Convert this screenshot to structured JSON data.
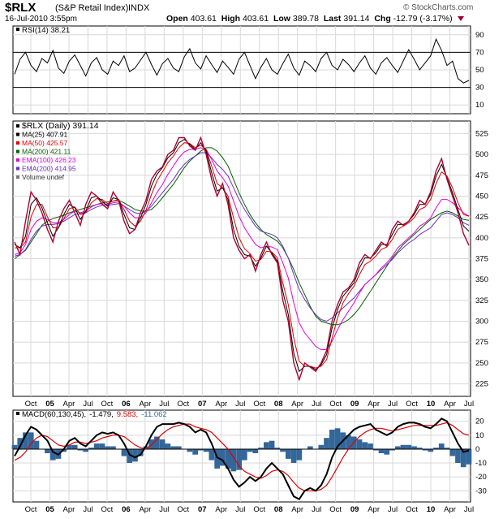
{
  "header": {
    "symbol": "$RLX",
    "name": "(S&P Retail Index)",
    "exchange": "INDX",
    "date": "16-Jul-2010 3:55pm",
    "open_label": "Open",
    "open": "403.61",
    "high_label": "High",
    "high": "403.61",
    "low_label": "Low",
    "low": "389.78",
    "last_label": "Last",
    "last": "391.14",
    "chg_label": "Chg",
    "chg": "-12.79 (-3.17%)",
    "brand": "© StockCharts.com"
  },
  "colors": {
    "price": "#b00030",
    "ma25": "#000000",
    "ma50": "#e00000",
    "ma200": "#006000",
    "ema100": "#e000e0",
    "ema200": "#6a2fc0",
    "hist": "#336699",
    "signal": "#e00000",
    "grid": "#d8d8d8"
  },
  "chart_data": [
    {
      "type": "line",
      "title": "RSI(14) 38.21",
      "legend": [
        {
          "label": "RSI(14) 38.21"
        }
      ],
      "ylim": [
        0,
        100
      ],
      "y_ticks": [
        "90",
        "70",
        "50",
        "30",
        "10"
      ],
      "reference_lines": [
        70,
        30
      ],
      "series": [
        {
          "values": [
            45,
            62,
            70,
            55,
            48,
            63,
            58,
            72,
            52,
            46,
            60,
            67,
            55,
            43,
            58,
            64,
            50,
            45,
            60,
            55,
            66,
            48,
            52,
            61,
            70,
            56,
            44,
            57,
            63,
            52,
            48,
            65,
            74,
            58,
            51,
            66,
            56,
            47,
            60,
            53,
            45,
            62,
            70,
            55,
            40,
            53,
            63,
            50,
            45,
            57,
            68,
            52,
            44,
            60,
            55,
            48,
            63,
            70,
            55,
            50,
            62,
            56,
            48,
            58,
            66,
            52,
            45,
            58,
            64,
            55,
            47,
            60,
            73,
            62,
            50,
            58,
            66,
            85,
            72,
            55,
            60,
            40,
            35,
            38
          ]
        }
      ]
    },
    {
      "type": "line",
      "title": "$RLX (Daily) 391.14",
      "legend": [
        {
          "label": "$RLX (Daily) 391.14"
        },
        {
          "label": "MA(25) 407.91"
        },
        {
          "label": "MA(50) 425.57"
        },
        {
          "label": "MA(200) 421.11"
        },
        {
          "label": "EMA(100) 426.23"
        },
        {
          "label": "EMA(200) 414.95"
        },
        {
          "label": "Volume undef"
        }
      ],
      "ylim": [
        210,
        540
      ],
      "y_ticks": [
        "525",
        "500",
        "475",
        "450",
        "425",
        "400",
        "375",
        "350",
        "325",
        "300",
        "275",
        "250",
        "225"
      ],
      "x_labels": [
        "Oct",
        "05",
        "Apr",
        "Jul",
        "Oct",
        "06",
        "Apr",
        "Jul",
        "Oct",
        "07",
        "Apr",
        "Jul",
        "Oct",
        "08",
        "Apr",
        "Jul",
        "Oct",
        "09",
        "Apr",
        "Jul",
        "Oct",
        "10",
        "Apr",
        "Jul"
      ],
      "x": [
        0,
        1,
        2,
        3,
        4,
        5,
        6,
        7,
        8,
        9,
        10,
        11,
        12,
        13,
        14,
        15,
        16,
        17,
        18,
        19,
        20,
        21,
        22,
        23,
        24,
        25,
        26,
        27,
        28,
        29,
        30,
        31,
        32,
        33,
        34,
        35,
        36,
        37,
        38,
        39,
        40,
        41,
        42,
        43,
        44,
        45,
        46,
        47,
        48,
        49,
        50,
        51,
        52,
        53,
        54,
        55,
        56,
        57,
        58,
        59,
        60,
        61,
        62,
        63,
        64,
        65,
        66,
        67,
        68,
        69,
        70,
        71,
        72,
        73,
        74,
        75,
        76,
        77,
        78,
        79,
        80,
        81,
        82,
        83
      ],
      "series": [
        {
          "name": "$RLX",
          "values": [
            395,
            380,
            420,
            455,
            445,
            430,
            410,
            395,
            420,
            435,
            445,
            430,
            415,
            440,
            455,
            450,
            440,
            435,
            455,
            445,
            420,
            405,
            410,
            430,
            445,
            470,
            480,
            485,
            500,
            505,
            520,
            520,
            510,
            505,
            520,
            500,
            470,
            450,
            465,
            440,
            400,
            385,
            375,
            380,
            360,
            380,
            395,
            380,
            370,
            325,
            300,
            250,
            230,
            250,
            245,
            240,
            250,
            265,
            300,
            320,
            335,
            340,
            350,
            370,
            380,
            375,
            385,
            395,
            390,
            410,
            420,
            415,
            420,
            430,
            445,
            440,
            455,
            480,
            495,
            470,
            450,
            430,
            405,
            391
          ]
        },
        {
          "name": "MA(25)",
          "values": [
            392,
            388,
            402,
            440,
            448,
            436,
            418,
            402,
            412,
            428,
            440,
            436,
            422,
            432,
            448,
            450,
            444,
            438,
            448,
            446,
            428,
            412,
            410,
            424,
            440,
            462,
            476,
            484,
            496,
            502,
            514,
            518,
            512,
            506,
            514,
            504,
            478,
            456,
            460,
            446,
            410,
            390,
            380,
            378,
            366,
            376,
            390,
            382,
            372,
            336,
            308,
            262,
            240,
            246,
            246,
            242,
            248,
            260,
            292,
            314,
            330,
            338,
            346,
            364,
            376,
            376,
            382,
            392,
            392,
            404,
            416,
            416,
            420,
            428,
            440,
            440,
            452,
            474,
            488,
            472,
            454,
            434,
            414,
            408
          ]
        },
        {
          "name": "MA(50)",
          "values": [
            388,
            388,
            395,
            425,
            440,
            440,
            425,
            412,
            412,
            423,
            435,
            437,
            428,
            430,
            442,
            447,
            446,
            441,
            444,
            446,
            434,
            420,
            414,
            420,
            433,
            452,
            468,
            479,
            490,
            498,
            508,
            514,
            513,
            508,
            511,
            506,
            486,
            465,
            460,
            450,
            424,
            400,
            387,
            381,
            372,
            374,
            384,
            383,
            376,
            346,
            320,
            280,
            252,
            246,
            246,
            244,
            246,
            254,
            280,
            304,
            322,
            333,
            342,
            356,
            368,
            372,
            378,
            386,
            389,
            398,
            410,
            414,
            418,
            424,
            434,
            437,
            446,
            465,
            479,
            474,
            460,
            442,
            428,
            426
          ]
        },
        {
          "name": "MA(200)",
          "values": [
            375,
            380,
            385,
            395,
            405,
            415,
            420,
            423,
            425,
            427,
            430,
            432,
            434,
            436,
            438,
            440,
            442,
            443,
            444,
            445,
            442,
            438,
            434,
            432,
            432,
            434,
            440,
            448,
            456,
            464,
            474,
            484,
            492,
            498,
            504,
            508,
            508,
            504,
            496,
            486,
            470,
            454,
            440,
            428,
            418,
            410,
            404,
            400,
            396,
            388,
            376,
            362,
            346,
            332,
            318,
            306,
            300,
            298,
            296,
            296,
            298,
            302,
            308,
            316,
            326,
            336,
            346,
            356,
            366,
            376,
            384,
            392,
            398,
            404,
            410,
            416,
            422,
            426,
            430,
            432,
            430,
            426,
            422,
            421
          ]
        },
        {
          "name": "EMA(100)",
          "values": [
            380,
            382,
            392,
            410,
            420,
            424,
            422,
            418,
            418,
            422,
            428,
            432,
            430,
            432,
            437,
            440,
            441,
            440,
            442,
            443,
            438,
            430,
            424,
            424,
            430,
            442,
            454,
            464,
            476,
            486,
            496,
            503,
            506,
            506,
            508,
            506,
            494,
            480,
            472,
            462,
            444,
            426,
            412,
            402,
            392,
            388,
            390,
            389,
            386,
            370,
            352,
            322,
            298,
            286,
            278,
            270,
            266,
            266,
            276,
            290,
            302,
            312,
            322,
            334,
            344,
            350,
            356,
            364,
            370,
            378,
            388,
            394,
            400,
            406,
            414,
            418,
            424,
            436,
            446,
            446,
            442,
            436,
            430,
            426
          ]
        },
        {
          "name": "EMA(200)",
          "values": [
            378,
            380,
            386,
            398,
            408,
            414,
            416,
            416,
            417,
            420,
            424,
            428,
            429,
            430,
            434,
            437,
            439,
            439,
            440,
            441,
            438,
            434,
            430,
            429,
            432,
            438,
            446,
            454,
            462,
            470,
            480,
            488,
            494,
            498,
            502,
            502,
            496,
            488,
            482,
            474,
            460,
            446,
            434,
            424,
            414,
            408,
            406,
            404,
            400,
            390,
            376,
            356,
            338,
            326,
            316,
            308,
            302,
            300,
            304,
            310,
            316,
            322,
            328,
            336,
            344,
            350,
            356,
            362,
            368,
            374,
            382,
            388,
            394,
            398,
            404,
            408,
            412,
            420,
            428,
            430,
            428,
            424,
            418,
            415
          ]
        }
      ]
    },
    {
      "type": "line",
      "title": "MACD(60,130,45) -1.479, 9.583, -11.062",
      "legend": [
        {
          "label": "MACD(60,130,45)"
        },
        {
          "label": "-1.479"
        },
        {
          "label": "9.583"
        },
        {
          "label": "-11.062"
        }
      ],
      "ylim": [
        -38,
        28
      ],
      "y_ticks": [
        "20",
        "10",
        "0",
        "-10",
        "-20",
        "-30"
      ],
      "x_labels": [
        "Oct",
        "05",
        "Apr",
        "Jul",
        "Oct",
        "06",
        "Apr",
        "Jul",
        "Oct",
        "07",
        "Apr",
        "Jul",
        "Oct",
        "08",
        "Apr",
        "Jul",
        "Oct",
        "09",
        "Apr",
        "Jul",
        "Oct",
        "10",
        "Apr",
        "Jul"
      ],
      "series": [
        {
          "name": "MACD",
          "values": [
            -5,
            2,
            10,
            16,
            14,
            10,
            6,
            -2,
            -4,
            0,
            6,
            8,
            4,
            2,
            6,
            10,
            12,
            11,
            12,
            10,
            4,
            -4,
            -6,
            -4,
            2,
            10,
            16,
            18,
            18,
            18,
            19,
            18,
            16,
            12,
            14,
            12,
            4,
            -6,
            -8,
            -14,
            -22,
            -27,
            -24,
            -20,
            -23,
            -20,
            -14,
            -10,
            -14,
            -18,
            -26,
            -34,
            -36,
            -30,
            -28,
            -30,
            -26,
            -18,
            -6,
            2,
            6,
            10,
            14,
            16,
            17,
            18,
            14,
            12,
            10,
            12,
            16,
            18,
            19,
            19,
            18,
            16,
            15,
            18,
            22,
            20,
            12,
            4,
            -2,
            -1
          ]
        },
        {
          "name": "Signal",
          "values": [
            -8,
            -6,
            -2,
            4,
            8,
            10,
            9,
            6,
            3,
            2,
            3,
            5,
            5,
            4,
            5,
            6,
            8,
            9,
            10,
            10,
            9,
            6,
            3,
            1,
            0,
            3,
            7,
            11,
            14,
            16,
            17,
            18,
            18,
            16,
            15,
            14,
            12,
            8,
            4,
            0,
            -6,
            -12,
            -16,
            -18,
            -20,
            -21,
            -19,
            -16,
            -15,
            -16,
            -19,
            -24,
            -28,
            -30,
            -30,
            -30,
            -29,
            -26,
            -20,
            -13,
            -6,
            0,
            5,
            9,
            12,
            14,
            15,
            15,
            14,
            13,
            14,
            15,
            16,
            17,
            17,
            17,
            17,
            17,
            18,
            19,
            17,
            14,
            11,
            10
          ]
        }
      ]
    }
  ]
}
